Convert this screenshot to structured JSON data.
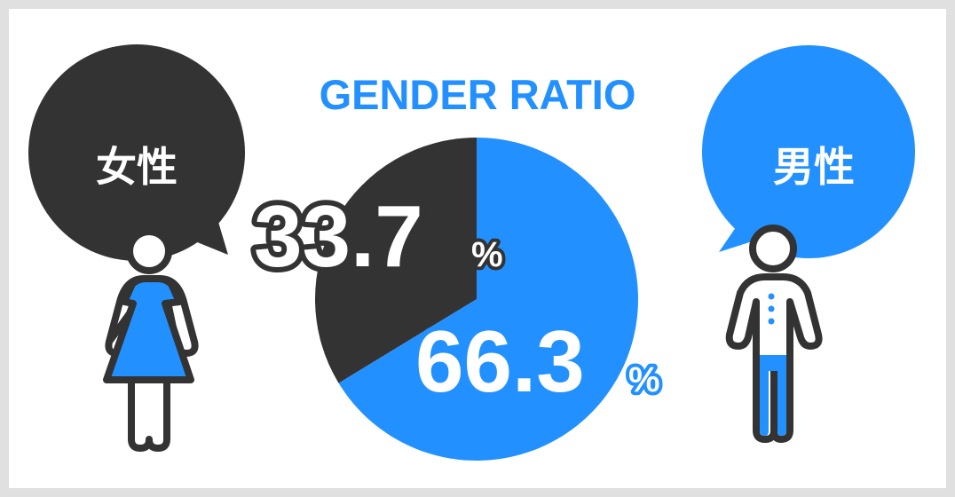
{
  "title": "GENDER RATIO",
  "colors": {
    "blue": "#2291ff",
    "dark": "#333333",
    "frame": "#e0e0e0"
  },
  "female": {
    "label": "女性",
    "value_text": "33.7",
    "unit": "%"
  },
  "male": {
    "label": "男性",
    "value_text": "66.3",
    "unit": "%"
  },
  "chart_data": {
    "type": "pie",
    "title": "GENDER RATIO",
    "categories": [
      "男性",
      "女性"
    ],
    "values": [
      66.3,
      33.7
    ],
    "colors": [
      "#2291ff",
      "#333333"
    ],
    "start": "12 o'clock, clockwise"
  }
}
